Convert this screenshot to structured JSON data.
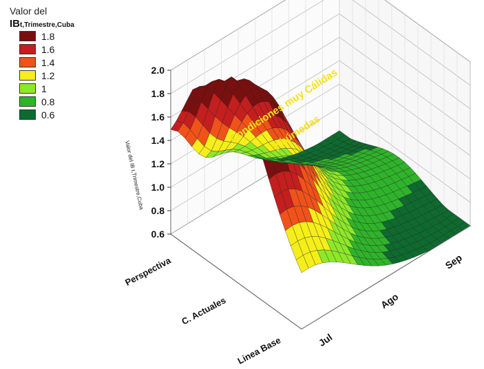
{
  "chart_data": {
    "type": "surface3d",
    "title": "",
    "legend_title": "Valor del",
    "legend_title2_main": "IB",
    "legend_title2_sub": "t,Trimestre,Cuba",
    "zlabel_main": "Valor del IB",
    "zlabel_sub": "t,Trimestre,Cuba",
    "x_ticks": [
      "Jul",
      "Ago",
      "Sep"
    ],
    "y_ticks": [
      "Linea Base",
      "C. Actuales",
      "Perspectiva"
    ],
    "z_ticks": [
      "0.6",
      "0.8",
      "1.0",
      "1.2",
      "1.4",
      "1.6",
      "1.8",
      "2.0"
    ],
    "zlim": [
      0.6,
      2.0
    ],
    "legend": [
      {
        "label": "1.8",
        "color": "#7a0f0f"
      },
      {
        "label": "1.6",
        "color": "#c41e1e"
      },
      {
        "label": "1.4",
        "color": "#f0521a"
      },
      {
        "label": "1.2",
        "color": "#f5ee1a"
      },
      {
        "label": "1",
        "color": "#8ee82a"
      },
      {
        "label": "0.8",
        "color": "#2fb32a"
      },
      {
        "label": "0.6",
        "color": "#0e6a2e"
      }
    ],
    "annotation_line1": "Condiciones muy Cálidas",
    "annotation_line2": "y húmedas",
    "grid": true,
    "legend_position": "top-left"
  }
}
